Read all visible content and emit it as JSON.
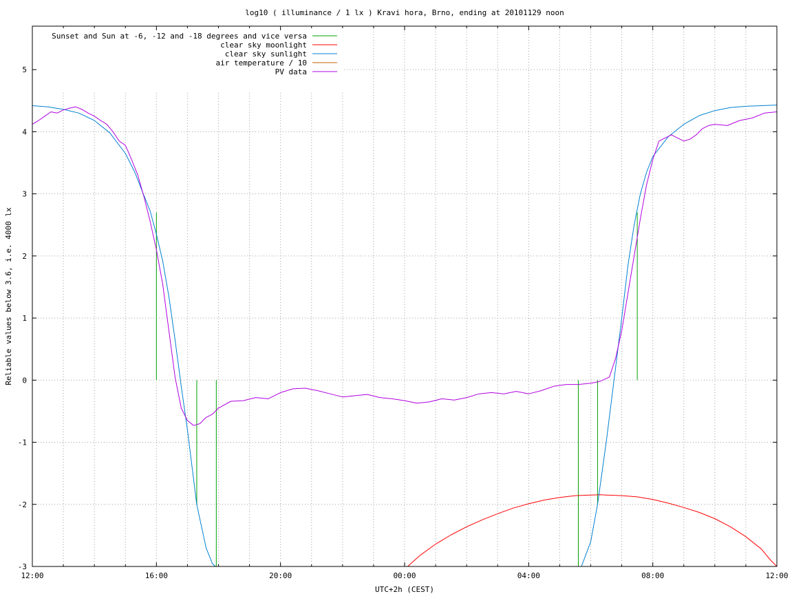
{
  "chart_data": {
    "type": "line",
    "title": "log10 ( illuminance / 1 lx ) Kravi hora, Brno, ending at 20101129 noon",
    "xlabel": "UTC+2h (CEST)",
    "ylabel": "Reliable values below 3.6, i.e. 4000 lx",
    "xlim": [
      0,
      24
    ],
    "ylim": [
      -3,
      5.7
    ],
    "x_tick_values": [
      0,
      4,
      8,
      12,
      16,
      20,
      24
    ],
    "x_tick_labels": [
      "12:00",
      "16:00",
      "20:00",
      "00:00",
      "04:00",
      "08:00",
      "12:00"
    ],
    "x_minor_grid": [
      1,
      2,
      3,
      5,
      6,
      7,
      9,
      10,
      11,
      13,
      14,
      15,
      17,
      18,
      19,
      21,
      22,
      23
    ],
    "y_ticks": [
      -3,
      -2,
      -1,
      0,
      1,
      2,
      3,
      4,
      5
    ],
    "y_tick_labels": [
      "-3",
      "-2",
      "-1",
      "0",
      "1",
      "2",
      "3",
      "4",
      "5"
    ],
    "grid": true,
    "legend_position": "top-left",
    "series": [
      {
        "name": "Sunset and Sun at -6, -12 and -18 degrees and vice versa",
        "color": "#00a000",
        "style": "vertical-lines",
        "lines": [
          {
            "x": 4.0,
            "y0": 0,
            "y1": 2.7
          },
          {
            "x": 5.3,
            "y0": -2.0,
            "y1": 0
          },
          {
            "x": 5.93,
            "y0": -3.0,
            "y1": 0
          },
          {
            "x": 17.6,
            "y0": -3.0,
            "y1": 0
          },
          {
            "x": 18.22,
            "y0": -2.0,
            "y1": 0
          },
          {
            "x": 19.5,
            "y0": 0,
            "y1": 2.7
          }
        ]
      },
      {
        "name": "clear sky moonlight",
        "color": "#ff0000",
        "style": "line",
        "x": [
          12.1,
          12.5,
          13.0,
          13.5,
          14.0,
          14.5,
          15.0,
          15.5,
          16.0,
          16.5,
          17.0,
          17.5,
          18.0,
          18.3,
          18.5,
          19.0,
          19.5,
          20.0,
          20.5,
          21.0,
          21.5,
          22.0,
          22.5,
          23.0,
          23.5,
          23.8,
          24.0
        ],
        "y": [
          -3.0,
          -2.82,
          -2.64,
          -2.49,
          -2.36,
          -2.25,
          -2.15,
          -2.06,
          -1.99,
          -1.93,
          -1.89,
          -1.86,
          -1.85,
          -1.845,
          -1.85,
          -1.86,
          -1.88,
          -1.92,
          -1.98,
          -2.05,
          -2.13,
          -2.23,
          -2.36,
          -2.52,
          -2.72,
          -2.9,
          -3.0
        ]
      },
      {
        "name": "clear sky sunlight",
        "color": "#0080d0",
        "style": "line",
        "x": [
          0,
          0.5,
          1.0,
          1.5,
          2.0,
          2.5,
          3.0,
          3.3,
          3.6,
          3.8,
          4.0,
          4.2,
          4.4,
          4.6,
          4.8,
          5.0,
          5.3,
          5.6,
          5.8,
          5.9,
          17.7,
          18.0,
          18.22,
          18.5,
          18.8,
          19.0,
          19.2,
          19.4,
          19.6,
          19.8,
          20.0,
          20.5,
          21.0,
          21.5,
          22.0,
          22.5,
          23.0,
          23.5,
          24.0
        ],
        "y": [
          4.42,
          4.4,
          4.36,
          4.3,
          4.18,
          3.98,
          3.65,
          3.35,
          2.97,
          2.72,
          2.35,
          1.92,
          1.35,
          0.65,
          -0.1,
          -0.8,
          -2.0,
          -2.7,
          -2.95,
          -3.0,
          -3.0,
          -2.6,
          -2.0,
          -1.0,
          0.2,
          1.0,
          1.85,
          2.5,
          3.0,
          3.35,
          3.6,
          3.92,
          4.12,
          4.26,
          4.34,
          4.39,
          4.41,
          4.42,
          4.43
        ]
      },
      {
        "name": "air temperature / 10",
        "color": "#c06000",
        "style": "line",
        "x": [],
        "y": []
      },
      {
        "name": "PV data",
        "color": "#b000e0",
        "style": "line",
        "x": [
          0,
          0.2,
          0.4,
          0.6,
          0.8,
          1.0,
          1.2,
          1.4,
          1.6,
          1.8,
          2.0,
          2.2,
          2.4,
          2.6,
          2.8,
          3.0,
          3.2,
          3.4,
          3.6,
          3.8,
          4.0,
          4.2,
          4.4,
          4.6,
          4.8,
          5.0,
          5.2,
          5.4,
          5.6,
          5.8,
          6.0,
          6.4,
          6.8,
          7.2,
          7.6,
          8.0,
          8.4,
          8.8,
          9.2,
          9.6,
          10.0,
          10.4,
          10.8,
          11.2,
          11.6,
          12.0,
          12.4,
          12.8,
          13.2,
          13.6,
          14.0,
          14.4,
          14.8,
          15.2,
          15.6,
          16.0,
          16.4,
          16.8,
          17.2,
          17.6,
          18.0,
          18.3,
          18.6,
          18.8,
          19.0,
          19.2,
          19.4,
          19.6,
          19.8,
          20.0,
          20.2,
          20.4,
          20.6,
          20.8,
          21.0,
          21.2,
          21.4,
          21.6,
          21.8,
          22.0,
          22.4,
          22.8,
          23.2,
          23.6,
          24.0
        ],
        "y": [
          4.12,
          4.18,
          4.25,
          4.32,
          4.3,
          4.35,
          4.38,
          4.4,
          4.36,
          4.3,
          4.25,
          4.18,
          4.12,
          4.0,
          3.85,
          3.78,
          3.55,
          3.3,
          2.95,
          2.55,
          2.1,
          1.55,
          0.8,
          0.05,
          -0.45,
          -0.65,
          -0.73,
          -0.7,
          -0.6,
          -0.55,
          -0.45,
          -0.34,
          -0.33,
          -0.28,
          -0.3,
          -0.2,
          -0.14,
          -0.13,
          -0.17,
          -0.22,
          -0.27,
          -0.25,
          -0.23,
          -0.28,
          -0.3,
          -0.33,
          -0.37,
          -0.35,
          -0.3,
          -0.32,
          -0.28,
          -0.22,
          -0.2,
          -0.22,
          -0.18,
          -0.22,
          -0.17,
          -0.1,
          -0.07,
          -0.07,
          -0.05,
          -0.02,
          0.05,
          0.35,
          0.8,
          1.4,
          2.0,
          2.6,
          3.15,
          3.55,
          3.85,
          3.9,
          3.95,
          3.9,
          3.85,
          3.88,
          3.95,
          4.05,
          4.1,
          4.12,
          4.1,
          4.18,
          4.22,
          4.3,
          4.32
        ]
      }
    ]
  }
}
